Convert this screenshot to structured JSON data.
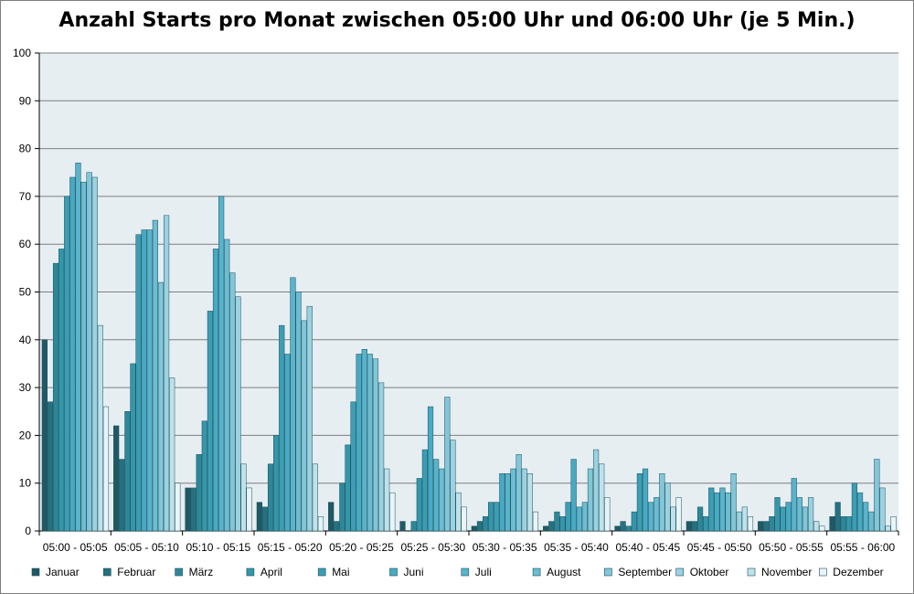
{
  "chart_data": {
    "type": "bar",
    "title": "Anzahl Starts pro Monat zwischen 05:00 Uhr und 06:00 Uhr (je 5 Min.)",
    "xlabel": "",
    "ylabel": "",
    "ylim": [
      0,
      100
    ],
    "yticks": [
      "0",
      "10",
      "20",
      "30",
      "40",
      "50",
      "60",
      "70",
      "80",
      "90",
      "100"
    ],
    "grid": true,
    "legend_position": "bottom",
    "categories": [
      "05:00 - 05:05",
      "05:05 - 05:10",
      "05:10 - 05:15",
      "05:15 - 05:20",
      "05:20 - 05:25",
      "05:25 - 05:30",
      "05:30 - 05:35",
      "05:35 - 05:40",
      "05:40 - 05:45",
      "05:45 - 05:50",
      "05:50 - 05:55",
      "05:55 - 06:00"
    ],
    "series": [
      {
        "name": "Januar",
        "color": "#1f5965",
        "values": [
          40,
          22,
          9,
          6,
          6,
          2,
          1,
          1,
          1,
          2,
          2,
          3
        ]
      },
      {
        "name": "Februar",
        "color": "#27707f",
        "values": [
          27,
          15,
          9,
          5,
          2,
          0,
          2,
          2,
          2,
          2,
          2,
          6
        ]
      },
      {
        "name": "März",
        "color": "#2e8799",
        "values": [
          56,
          25,
          16,
          14,
          10,
          2,
          3,
          4,
          1,
          5,
          3,
          3
        ]
      },
      {
        "name": "April",
        "color": "#3596aa",
        "values": [
          59,
          35,
          23,
          20,
          18,
          11,
          6,
          3,
          4,
          3,
          7,
          3
        ]
      },
      {
        "name": "Mai",
        "color": "#3c9db3",
        "values": [
          70,
          62,
          46,
          43,
          27,
          17,
          6,
          6,
          12,
          9,
          5,
          10
        ]
      },
      {
        "name": "Juni",
        "color": "#48a9c2",
        "values": [
          74,
          63,
          59,
          37,
          37,
          26,
          12,
          15,
          13,
          8,
          6,
          8
        ]
      },
      {
        "name": "Juli",
        "color": "#5ab3ca",
        "values": [
          77,
          63,
          70,
          53,
          38,
          15,
          12,
          5,
          6,
          9,
          11,
          6
        ]
      },
      {
        "name": "August",
        "color": "#6dbcd1",
        "values": [
          73,
          65,
          61,
          50,
          37,
          13,
          13,
          6,
          7,
          8,
          7,
          4
        ]
      },
      {
        "name": "September",
        "color": "#82c6d8",
        "values": [
          75,
          52,
          54,
          44,
          36,
          28,
          16,
          13,
          12,
          12,
          5,
          15
        ]
      },
      {
        "name": "Oktober",
        "color": "#9cd1e0",
        "values": [
          74,
          66,
          49,
          47,
          31,
          19,
          13,
          17,
          10,
          4,
          7,
          9
        ]
      },
      {
        "name": "November",
        "color": "#bfe1ea",
        "values": [
          43,
          32,
          14,
          14,
          13,
          8,
          12,
          14,
          5,
          5,
          2,
          1
        ]
      },
      {
        "name": "Dezember",
        "color": "#e8f4f8",
        "values": [
          26,
          10,
          9,
          3,
          8,
          5,
          4,
          7,
          7,
          3,
          1,
          3
        ]
      }
    ]
  },
  "colors": {
    "plot_bg": "#e6eef2",
    "grid": "#7f7f7f",
    "bar_border": "#1a4f5b"
  }
}
